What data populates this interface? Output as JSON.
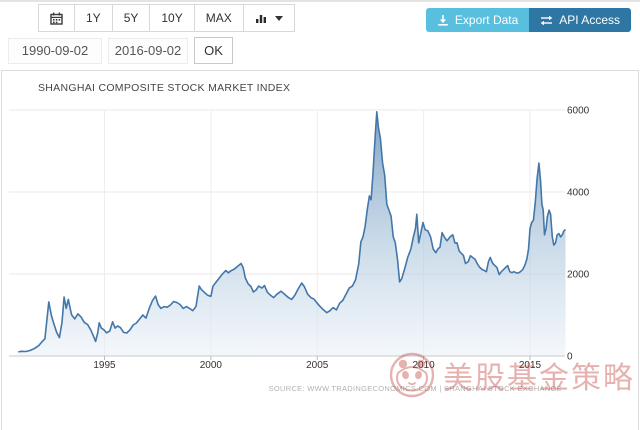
{
  "toolbar": {
    "range_buttons": [
      "1Y",
      "5Y",
      "10Y",
      "MAX"
    ],
    "icons": {
      "calendar": "calendar-icon",
      "chart_type": "bar-chart-icon",
      "chart_type_caret": "chevron-down-icon",
      "export": "download-icon",
      "api": "swap-arrows-icon"
    },
    "export_label": "Export Data",
    "api_label": "API Access",
    "export_color": "#58bfdf",
    "api_color": "#2e76a4"
  },
  "date_controls": {
    "start_date": "1990-09-02",
    "end_date": "2016-09-02",
    "ok_label": "OK"
  },
  "chart": {
    "title": "SHANGHAI COMPOSITE STOCK MARKET INDEX",
    "source": "SOURCE:  WWW.TRADINGECONOMICS.COM  |  SHANGHAI STOCK EXCHANGE"
  },
  "watermark": {
    "text": "美股基金策略",
    "color": "#c0413d",
    "logo": "panda-circle-logo"
  },
  "chart_data": {
    "type": "area",
    "title": "SHANGHAI COMPOSITE STOCK MARKET INDEX",
    "series_name": "Shanghai Composite Stock Market Index",
    "xlim": [
      1990.67,
      2016.67
    ],
    "ylim": [
      0,
      6000
    ],
    "x_ticks": [
      1995,
      2000,
      2005,
      2010,
      2015
    ],
    "y_ticks": [
      0,
      2000,
      4000,
      6000
    ],
    "y_axis_side": "right",
    "grid": true,
    "colors": {
      "line": "#4377a9",
      "fill_top": "#6892ba",
      "fill_bottom": "#eaf1f7",
      "grid": "#e9e9e9",
      "axis": "#c9c9c9",
      "tick_label": "#333333"
    },
    "points": [
      [
        1990.95,
        100
      ],
      [
        1991.1,
        115
      ],
      [
        1991.3,
        110
      ],
      [
        1991.5,
        135
      ],
      [
        1991.7,
        180
      ],
      [
        1991.9,
        250
      ],
      [
        1992.05,
        340
      ],
      [
        1992.2,
        420
      ],
      [
        1992.38,
        1320
      ],
      [
        1992.5,
        1000
      ],
      [
        1992.6,
        820
      ],
      [
        1992.75,
        580
      ],
      [
        1992.88,
        450
      ],
      [
        1993.0,
        820
      ],
      [
        1993.1,
        1440
      ],
      [
        1993.2,
        1160
      ],
      [
        1993.3,
        1380
      ],
      [
        1993.45,
        1010
      ],
      [
        1993.6,
        905
      ],
      [
        1993.75,
        1030
      ],
      [
        1993.9,
        950
      ],
      [
        1994.05,
        820
      ],
      [
        1994.2,
        770
      ],
      [
        1994.35,
        640
      ],
      [
        1994.5,
        460
      ],
      [
        1994.58,
        355
      ],
      [
        1994.68,
        560
      ],
      [
        1994.75,
        810
      ],
      [
        1994.85,
        680
      ],
      [
        1994.97,
        640
      ],
      [
        1995.1,
        565
      ],
      [
        1995.25,
        610
      ],
      [
        1995.38,
        835
      ],
      [
        1995.5,
        680
      ],
      [
        1995.62,
        735
      ],
      [
        1995.75,
        690
      ],
      [
        1995.9,
        575
      ],
      [
        1996.05,
        560
      ],
      [
        1996.2,
        640
      ],
      [
        1996.35,
        755
      ],
      [
        1996.5,
        805
      ],
      [
        1996.65,
        900
      ],
      [
        1996.8,
        1000
      ],
      [
        1996.95,
        925
      ],
      [
        1997.1,
        1160
      ],
      [
        1997.25,
        1350
      ],
      [
        1997.4,
        1460
      ],
      [
        1997.52,
        1255
      ],
      [
        1997.65,
        1160
      ],
      [
        1997.8,
        1205
      ],
      [
        1997.95,
        1190
      ],
      [
        1998.1,
        1245
      ],
      [
        1998.25,
        1330
      ],
      [
        1998.4,
        1305
      ],
      [
        1998.55,
        1255
      ],
      [
        1998.7,
        1160
      ],
      [
        1998.85,
        1205
      ],
      [
        1999.0,
        1160
      ],
      [
        1999.15,
        1105
      ],
      [
        1999.3,
        1210
      ],
      [
        1999.45,
        1705
      ],
      [
        1999.55,
        1625
      ],
      [
        1999.7,
        1550
      ],
      [
        1999.85,
        1480
      ],
      [
        2000.0,
        1455
      ],
      [
        2000.1,
        1705
      ],
      [
        2000.25,
        1805
      ],
      [
        2000.4,
        1905
      ],
      [
        2000.55,
        2005
      ],
      [
        2000.7,
        2085
      ],
      [
        2000.82,
        2030
      ],
      [
        2000.95,
        2080
      ],
      [
        2001.1,
        2120
      ],
      [
        2001.25,
        2185
      ],
      [
        2001.42,
        2255
      ],
      [
        2001.52,
        2150
      ],
      [
        2001.62,
        1905
      ],
      [
        2001.75,
        1760
      ],
      [
        2001.88,
        1695
      ],
      [
        2002.0,
        1560
      ],
      [
        2002.12,
        1610
      ],
      [
        2002.25,
        1705
      ],
      [
        2002.4,
        1655
      ],
      [
        2002.52,
        1720
      ],
      [
        2002.65,
        1555
      ],
      [
        2002.8,
        1485
      ],
      [
        2002.95,
        1425
      ],
      [
        2003.1,
        1505
      ],
      [
        2003.3,
        1580
      ],
      [
        2003.5,
        1490
      ],
      [
        2003.65,
        1425
      ],
      [
        2003.8,
        1380
      ],
      [
        2003.95,
        1485
      ],
      [
        2004.1,
        1635
      ],
      [
        2004.27,
        1780
      ],
      [
        2004.4,
        1685
      ],
      [
        2004.55,
        1505
      ],
      [
        2004.7,
        1425
      ],
      [
        2004.85,
        1385
      ],
      [
        2005.0,
        1285
      ],
      [
        2005.15,
        1200
      ],
      [
        2005.3,
        1125
      ],
      [
        2005.45,
        1055
      ],
      [
        2005.6,
        1105
      ],
      [
        2005.75,
        1180
      ],
      [
        2005.9,
        1125
      ],
      [
        2006.05,
        1285
      ],
      [
        2006.2,
        1355
      ],
      [
        2006.35,
        1505
      ],
      [
        2006.5,
        1655
      ],
      [
        2006.65,
        1705
      ],
      [
        2006.8,
        1855
      ],
      [
        2006.95,
        2245
      ],
      [
        2007.05,
        2785
      ],
      [
        2007.15,
        2905
      ],
      [
        2007.25,
        3155
      ],
      [
        2007.35,
        3560
      ],
      [
        2007.45,
        3905
      ],
      [
        2007.53,
        3810
      ],
      [
        2007.62,
        4460
      ],
      [
        2007.72,
        5330
      ],
      [
        2007.8,
        5955
      ],
      [
        2007.88,
        5560
      ],
      [
        2007.97,
        5310
      ],
      [
        2008.07,
        4705
      ],
      [
        2008.17,
        4410
      ],
      [
        2008.27,
        3705
      ],
      [
        2008.37,
        3560
      ],
      [
        2008.47,
        3410
      ],
      [
        2008.57,
        2910
      ],
      [
        2008.67,
        2760
      ],
      [
        2008.77,
        2360
      ],
      [
        2008.87,
        1805
      ],
      [
        2008.97,
        1885
      ],
      [
        2009.1,
        2110
      ],
      [
        2009.25,
        2405
      ],
      [
        2009.4,
        2610
      ],
      [
        2009.52,
        2910
      ],
      [
        2009.62,
        3110
      ],
      [
        2009.68,
        3455
      ],
      [
        2009.77,
        2760
      ],
      [
        2009.87,
        3010
      ],
      [
        2009.97,
        3255
      ],
      [
        2010.07,
        3080
      ],
      [
        2010.2,
        3050
      ],
      [
        2010.33,
        2905
      ],
      [
        2010.45,
        2610
      ],
      [
        2010.57,
        2520
      ],
      [
        2010.67,
        2610
      ],
      [
        2010.77,
        2655
      ],
      [
        2010.87,
        3010
      ],
      [
        2010.97,
        2905
      ],
      [
        2011.1,
        2810
      ],
      [
        2011.25,
        2910
      ],
      [
        2011.37,
        2955
      ],
      [
        2011.47,
        2755
      ],
      [
        2011.57,
        2760
      ],
      [
        2011.67,
        2560
      ],
      [
        2011.77,
        2505
      ],
      [
        2011.87,
        2455
      ],
      [
        2011.97,
        2255
      ],
      [
        2012.1,
        2305
      ],
      [
        2012.2,
        2445
      ],
      [
        2012.3,
        2405
      ],
      [
        2012.42,
        2355
      ],
      [
        2012.52,
        2255
      ],
      [
        2012.62,
        2170
      ],
      [
        2012.75,
        2110
      ],
      [
        2012.87,
        2080
      ],
      [
        2012.95,
        2055
      ],
      [
        2013.05,
        2305
      ],
      [
        2013.13,
        2405
      ],
      [
        2013.25,
        2255
      ],
      [
        2013.35,
        2205
      ],
      [
        2013.45,
        2155
      ],
      [
        2013.55,
        1985
      ],
      [
        2013.65,
        2055
      ],
      [
        2013.75,
        2105
      ],
      [
        2013.85,
        2155
      ],
      [
        2013.95,
        2205
      ],
      [
        2014.05,
        2055
      ],
      [
        2014.15,
        2035
      ],
      [
        2014.25,
        2055
      ],
      [
        2014.35,
        2030
      ],
      [
        2014.45,
        2025
      ],
      [
        2014.55,
        2055
      ],
      [
        2014.65,
        2105
      ],
      [
        2014.75,
        2205
      ],
      [
        2014.85,
        2355
      ],
      [
        2014.93,
        2605
      ],
      [
        2015.0,
        3105
      ],
      [
        2015.08,
        3255
      ],
      [
        2015.16,
        3310
      ],
      [
        2015.25,
        3755
      ],
      [
        2015.33,
        4305
      ],
      [
        2015.42,
        4705
      ],
      [
        2015.5,
        4255
      ],
      [
        2015.56,
        3705
      ],
      [
        2015.62,
        3555
      ],
      [
        2015.68,
        2955
      ],
      [
        2015.75,
        3105
      ],
      [
        2015.82,
        3405
      ],
      [
        2015.9,
        3555
      ],
      [
        2015.97,
        3455
      ],
      [
        2016.05,
        2905
      ],
      [
        2016.12,
        2705
      ],
      [
        2016.2,
        2755
      ],
      [
        2016.28,
        2955
      ],
      [
        2016.36,
        2985
      ],
      [
        2016.44,
        2905
      ],
      [
        2016.52,
        2955
      ],
      [
        2016.6,
        3055
      ],
      [
        2016.67,
        3085
      ]
    ]
  }
}
